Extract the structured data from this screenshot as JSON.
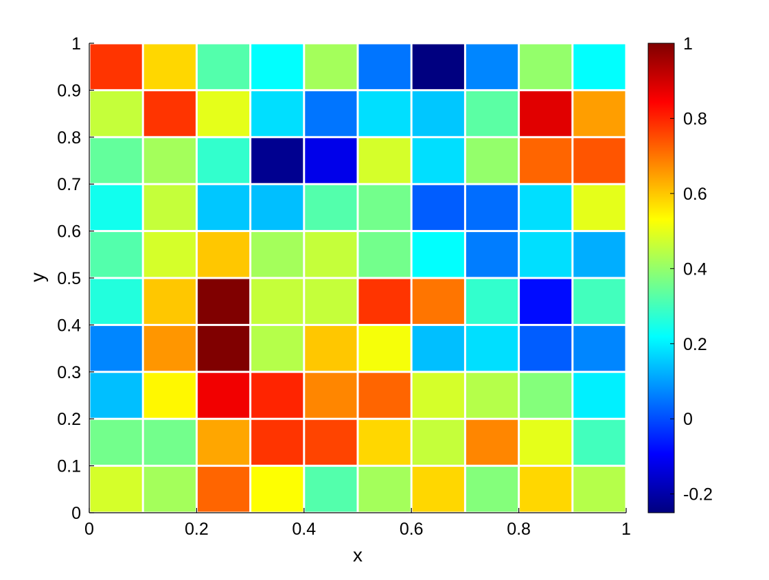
{
  "chart_data": {
    "type": "heatmap",
    "title": "",
    "xlabel": "x",
    "ylabel": "y",
    "xlim": [
      0,
      1
    ],
    "ylim": [
      0,
      1
    ],
    "x_ticks": [
      "0",
      "0.2",
      "0.4",
      "0.6",
      "0.8",
      "1"
    ],
    "y_ticks": [
      "0",
      "0.1",
      "0.2",
      "0.3",
      "0.4",
      "0.5",
      "0.6",
      "0.7",
      "0.8",
      "0.9",
      "1"
    ],
    "grid": false,
    "colormap": "jet",
    "color_range": [
      -0.25,
      1.0
    ],
    "colorbar": {
      "placement": "right",
      "ticks": [
        "-0.2",
        "0",
        "0.2",
        "0.4",
        "0.6",
        "0.8",
        "1"
      ]
    },
    "x_centers": [
      0.05,
      0.15,
      0.25,
      0.35,
      0.45,
      0.55,
      0.65,
      0.75,
      0.85,
      0.95
    ],
    "y_centers": [
      0.95,
      0.85,
      0.75,
      0.65,
      0.55,
      0.45,
      0.35,
      0.25,
      0.15,
      0.05
    ],
    "values": [
      [
        0.78,
        0.58,
        0.32,
        0.22,
        0.42,
        0.05,
        -0.25,
        0.07,
        0.4,
        0.22
      ],
      [
        0.46,
        0.78,
        0.5,
        0.18,
        0.05,
        0.18,
        0.15,
        0.33,
        0.88,
        0.65
      ],
      [
        0.34,
        0.42,
        0.28,
        -0.23,
        -0.12,
        0.48,
        0.18,
        0.4,
        0.72,
        0.74
      ],
      [
        0.24,
        0.46,
        0.15,
        0.14,
        0.32,
        0.36,
        0.02,
        0.04,
        0.18,
        0.5
      ],
      [
        0.32,
        0.48,
        0.6,
        0.42,
        0.46,
        0.36,
        0.22,
        0.06,
        0.18,
        0.12
      ],
      [
        0.26,
        0.6,
        1.0,
        0.46,
        0.46,
        0.78,
        0.7,
        0.28,
        -0.08,
        0.3
      ],
      [
        0.07,
        0.66,
        1.0,
        0.44,
        0.6,
        0.52,
        0.14,
        0.18,
        0.02,
        0.07
      ],
      [
        0.14,
        0.54,
        0.86,
        0.8,
        0.68,
        0.72,
        0.48,
        0.44,
        0.38,
        0.2
      ],
      [
        0.36,
        0.36,
        0.64,
        0.78,
        0.76,
        0.58,
        0.46,
        0.68,
        0.5,
        0.3
      ],
      [
        0.48,
        0.42,
        0.72,
        0.53,
        0.32,
        0.42,
        0.58,
        0.38,
        0.58,
        0.44
      ]
    ]
  }
}
